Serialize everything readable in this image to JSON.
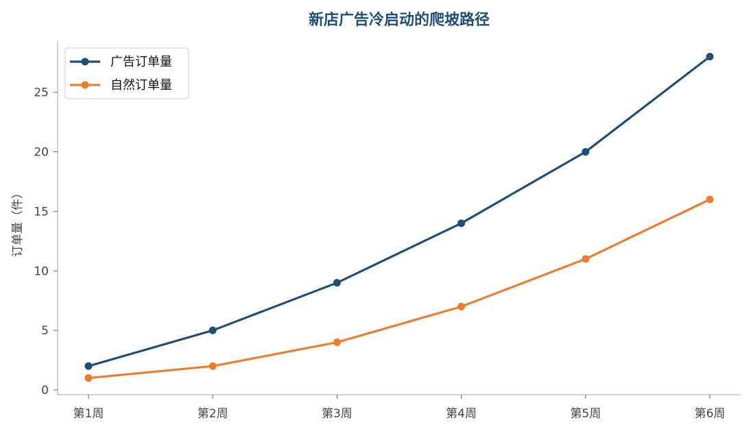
{
  "chart_data": {
    "type": "line",
    "title": "新店广告冷启动的爬坡路径",
    "xlabel": "",
    "ylabel": "订单量（件）",
    "categories": [
      "第1周",
      "第2周",
      "第3周",
      "第4周",
      "第5周",
      "第6周"
    ],
    "yticks": [
      0,
      5,
      10,
      15,
      20,
      25
    ],
    "ylim": [
      -0.4,
      29.3
    ],
    "grid": false,
    "legend_position": "top-left",
    "series": [
      {
        "name": "广告订单量",
        "color": "#1f4e79",
        "values": [
          2,
          5,
          9,
          14,
          20,
          28
        ]
      },
      {
        "name": "自然订单量",
        "color": "#ed7d31",
        "values": [
          1,
          2,
          4,
          7,
          11,
          16
        ]
      }
    ]
  }
}
